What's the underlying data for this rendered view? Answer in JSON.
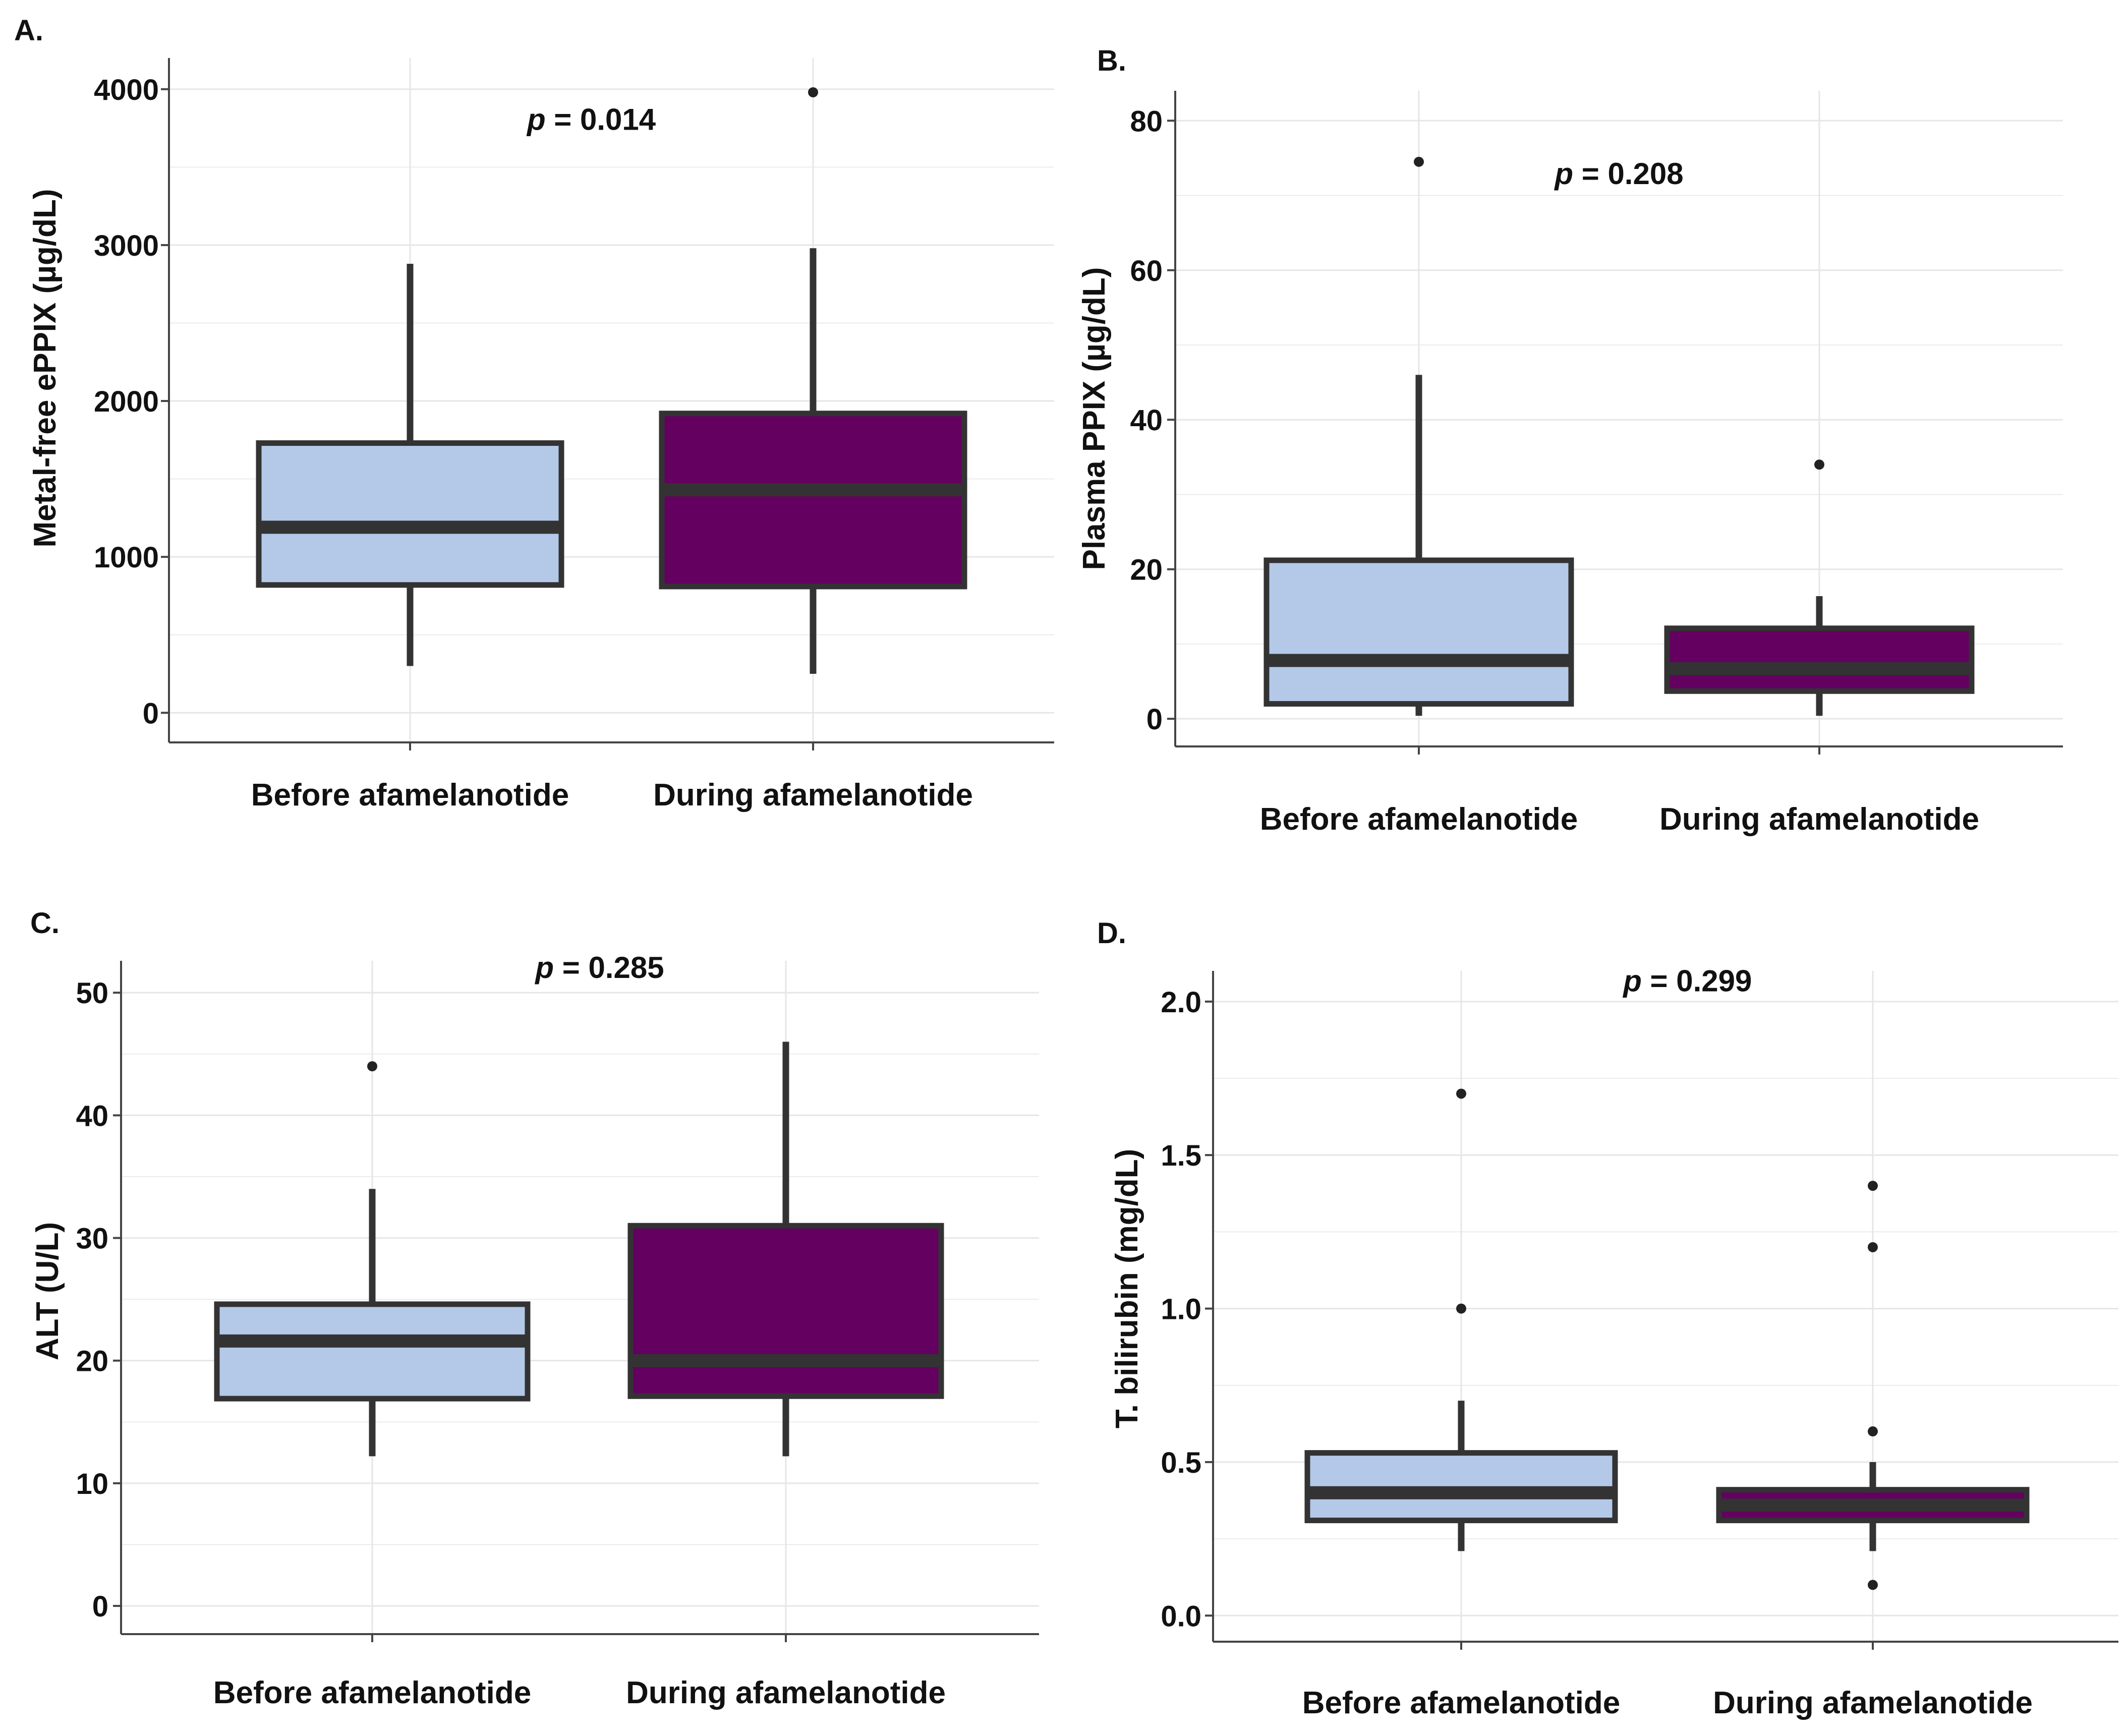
{
  "figure": {
    "colors": {
      "before_fill": "#B4C8E8",
      "during_fill": "#640060",
      "box_stroke": "#333333",
      "median": "#333333",
      "axis": "#444444",
      "grid": "#E6E6E6",
      "outlier": "#222222"
    }
  },
  "chart_data": [
    {
      "type": "box",
      "panel": "A.",
      "ylabel": "Metal-free  ePPIX (µg/dL)",
      "categories": [
        "Before afamelanotide",
        "During afamelanotide"
      ],
      "yticks": [
        0,
        1000,
        2000,
        3000,
        4000
      ],
      "ylim": [
        -190,
        4200
      ],
      "annotation": {
        "label": "p",
        "text": " = 0.014",
        "x_position": 1.45,
        "y_value": 3810
      },
      "boxes": [
        {
          "min": 300,
          "q1": 820,
          "median": 1190,
          "q3": 1730,
          "max": 2880,
          "outliers": []
        },
        {
          "min": 250,
          "q1": 810,
          "median": 1430,
          "q3": 1920,
          "max": 2980,
          "outliers": [
            3980
          ]
        }
      ]
    },
    {
      "type": "box",
      "panel": "B.",
      "ylabel": "Plasma PPIX (µg/dL)",
      "categories": [
        "Before afamelanotide",
        "During afamelanotide"
      ],
      "yticks": [
        0,
        20,
        40,
        60,
        80
      ],
      "ylim": [
        -3.7,
        84
      ],
      "annotation": {
        "label": "p",
        "text": " = 0.208",
        "x_position": 1.5,
        "y_value": 73
      },
      "boxes": [
        {
          "min": 0.4,
          "q1": 2.0,
          "median": 7.8,
          "q3": 21.2,
          "max": 46.0,
          "outliers": [
            74.5
          ]
        },
        {
          "min": 0.4,
          "q1": 3.7,
          "median": 6.7,
          "q3": 12.1,
          "max": 16.4,
          "outliers": [
            34.0
          ]
        }
      ]
    },
    {
      "type": "box",
      "panel": "C.",
      "ylabel": "ALT (U/L)",
      "categories": [
        "Before afamelanotide",
        "During afamelanotide"
      ],
      "yticks": [
        0,
        10,
        20,
        30,
        40,
        50
      ],
      "ylim": [
        -2.3,
        52.6
      ],
      "annotation": {
        "label": "p",
        "text": " = 0.285",
        "x_position": 1.55,
        "y_value": 52.1
      },
      "boxes": [
        {
          "min": 12.2,
          "q1": 16.9,
          "median": 21.6,
          "q3": 24.6,
          "max": 34.0,
          "outliers": [
            44.0
          ]
        },
        {
          "min": 12.2,
          "q1": 17.1,
          "median": 20.0,
          "q3": 31.0,
          "max": 46.0,
          "outliers": []
        }
      ]
    },
    {
      "type": "box",
      "panel": "D.",
      "ylabel": "T. bilirubin (mg/dL)",
      "categories": [
        "Before afamelanotide",
        "During afamelanotide"
      ],
      "yticks": [
        0.0,
        0.5,
        1.0,
        1.5,
        2.0
      ],
      "ytick_labels": [
        "0.0",
        "0.5",
        "1.0",
        "1.5",
        "2.0"
      ],
      "ylim": [
        -0.085,
        2.1
      ],
      "annotation": {
        "label": "p",
        "text": " = 0.299",
        "x_position": 1.55,
        "y_value": 2.07
      },
      "boxes": [
        {
          "min": 0.21,
          "q1": 0.31,
          "median": 0.4,
          "q3": 0.53,
          "max": 0.7,
          "outliers": [
            1.0,
            1.7
          ]
        },
        {
          "min": 0.21,
          "q1": 0.31,
          "median": 0.36,
          "q3": 0.41,
          "max": 0.5,
          "outliers": [
            0.1,
            0.6,
            1.2,
            1.4
          ]
        }
      ]
    }
  ]
}
